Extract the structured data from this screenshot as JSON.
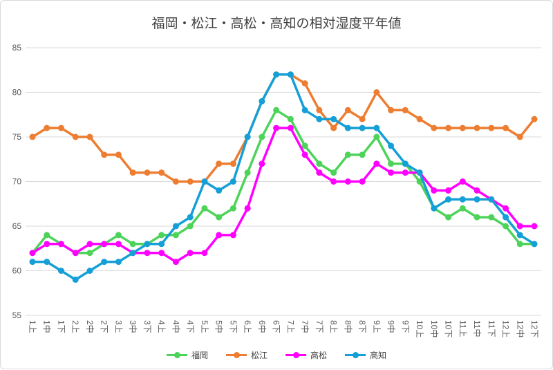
{
  "chart_data": {
    "type": "line",
    "title": "福岡・松江・高松・高知の相対湿度平年値",
    "xlabel": "",
    "ylabel": "",
    "ylim": [
      55,
      85
    ],
    "yticks": [
      55,
      60,
      65,
      70,
      75,
      80,
      85
    ],
    "grid": true,
    "legend_position": "bottom",
    "categories": [
      "1上",
      "1中",
      "1下",
      "2上",
      "2中",
      "2下",
      "3上",
      "3中",
      "3下",
      "4上",
      "4中",
      "4下",
      "5上",
      "5中",
      "5下",
      "6上",
      "6中",
      "6下",
      "7上",
      "7中",
      "7下",
      "8上",
      "8中",
      "8下",
      "9上",
      "9中",
      "9下",
      "10上",
      "10中",
      "10下",
      "11上",
      "11中",
      "11下",
      "12上",
      "12中",
      "12下"
    ],
    "series": [
      {
        "name": "福岡",
        "color": "#4dd35a",
        "values": [
          62,
          64,
          63,
          62,
          62,
          63,
          64,
          63,
          63,
          64,
          64,
          65,
          67,
          66,
          67,
          71,
          75,
          78,
          77,
          74,
          72,
          71,
          73,
          73,
          75,
          72,
          72,
          70,
          67,
          66,
          67,
          66,
          66,
          65,
          63,
          63
        ]
      },
      {
        "name": "松江",
        "color": "#ed7d31",
        "values": [
          75,
          76,
          76,
          75,
          75,
          73,
          73,
          71,
          71,
          71,
          70,
          70,
          70,
          72,
          72,
          75,
          79,
          82,
          82,
          81,
          78,
          76,
          78,
          77,
          80,
          78,
          78,
          77,
          76,
          76,
          76,
          76,
          76,
          76,
          75,
          77
        ]
      },
      {
        "name": "高松",
        "color": "#ff00ff",
        "values": [
          62,
          63,
          63,
          62,
          63,
          63,
          63,
          62,
          62,
          62,
          61,
          62,
          62,
          64,
          64,
          67,
          72,
          76,
          76,
          73,
          71,
          70,
          70,
          70,
          72,
          71,
          71,
          71,
          69,
          69,
          70,
          69,
          68,
          67,
          65,
          65
        ]
      },
      {
        "name": "高知",
        "color": "#149fd6",
        "values": [
          61,
          61,
          60,
          59,
          60,
          61,
          61,
          62,
          63,
          63,
          65,
          66,
          70,
          69,
          70,
          75,
          79,
          82,
          82,
          78,
          77,
          77,
          76,
          76,
          76,
          74,
          72,
          71,
          67,
          68,
          68,
          68,
          68,
          66,
          64,
          63
        ]
      }
    ]
  }
}
